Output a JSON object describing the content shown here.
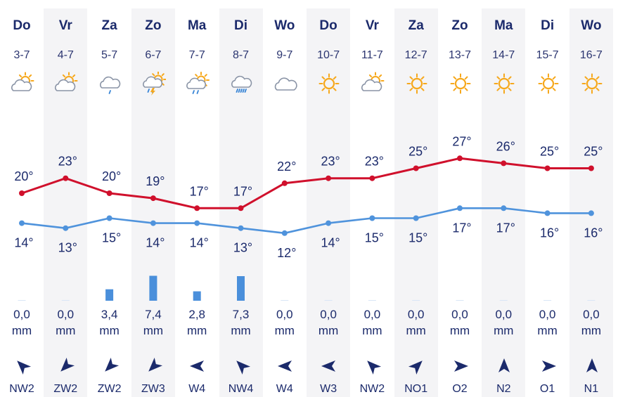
{
  "colors": {
    "max_line": "#d0102c",
    "min_line": "#4f93dc",
    "bar": "#4a8fdb",
    "text": "#1b2a6b",
    "sun": "#f6a81c",
    "cloud": "#8a94a6",
    "rain": "#3a86d6",
    "arrow": "#1b2a6b"
  },
  "chart_data": {
    "type": "line",
    "series": [
      {
        "name": "",
        "values": [
          20,
          23,
          20,
          19,
          17,
          17,
          22,
          23,
          23,
          25,
          27,
          26,
          25,
          25
        ]
      },
      {
        "name": "",
        "values": [
          14,
          13,
          15,
          14,
          14,
          13,
          12,
          14,
          15,
          15,
          17,
          17,
          16,
          16
        ]
      }
    ]
  },
  "days": [
    {
      "day": "Do",
      "date": "3-7",
      "icon": "partly-cloudy-icon",
      "max": "20°",
      "min": "14°",
      "precip": "0,0",
      "precip_value": 0.0,
      "unit": "mm",
      "wind": "NW2",
      "wind_dir": 135
    },
    {
      "day": "Vr",
      "date": "4-7",
      "icon": "partly-cloudy-icon",
      "max": "23°",
      "min": "13°",
      "precip": "0,0",
      "precip_value": 0.0,
      "unit": "mm",
      "wind": "ZW2",
      "wind_dir": 45
    },
    {
      "day": "Za",
      "date": "5-7",
      "icon": "light-rain-icon",
      "max": "20°",
      "min": "15°",
      "precip": "3,4",
      "precip_value": 3.4,
      "unit": "mm",
      "wind": "ZW2",
      "wind_dir": 45
    },
    {
      "day": "Zo",
      "date": "6-7",
      "icon": "thunderstorm-icon",
      "max": "19°",
      "min": "14°",
      "precip": "7,4",
      "precip_value": 7.4,
      "unit": "mm",
      "wind": "ZW3",
      "wind_dir": 45
    },
    {
      "day": "Ma",
      "date": "7-7",
      "icon": "partly-cloudy-rain-icon",
      "max": "17°",
      "min": "14°",
      "precip": "2,8",
      "precip_value": 2.8,
      "unit": "mm",
      "wind": "W4",
      "wind_dir": 90
    },
    {
      "day": "Di",
      "date": "8-7",
      "icon": "rain-icon",
      "max": "17°",
      "min": "13°",
      "precip": "7,3",
      "precip_value": 7.3,
      "unit": "mm",
      "wind": "NW4",
      "wind_dir": 135
    },
    {
      "day": "Wo",
      "date": "9-7",
      "icon": "cloudy-icon",
      "max": "22°",
      "min": "12°",
      "precip": "0,0",
      "precip_value": 0.0,
      "unit": "mm",
      "wind": "W4",
      "wind_dir": 90
    },
    {
      "day": "Do",
      "date": "10-7",
      "icon": "sun-icon",
      "max": "23°",
      "min": "14°",
      "precip": "0,0",
      "precip_value": 0.0,
      "unit": "mm",
      "wind": "W3",
      "wind_dir": 90
    },
    {
      "day": "Vr",
      "date": "11-7",
      "icon": "partly-cloudy-icon",
      "max": "23°",
      "min": "15°",
      "precip": "0,0",
      "precip_value": 0.0,
      "unit": "mm",
      "wind": "NW2",
      "wind_dir": 135
    },
    {
      "day": "Za",
      "date": "12-7",
      "icon": "sun-icon",
      "max": "25°",
      "min": "15°",
      "precip": "0,0",
      "precip_value": 0.0,
      "unit": "mm",
      "wind": "NO1",
      "wind_dir": 225
    },
    {
      "day": "Zo",
      "date": "13-7",
      "icon": "sun-icon",
      "max": "27°",
      "min": "17°",
      "precip": "0,0",
      "precip_value": 0.0,
      "unit": "mm",
      "wind": "O2",
      "wind_dir": 270
    },
    {
      "day": "Ma",
      "date": "14-7",
      "icon": "sun-icon",
      "max": "26°",
      "min": "17°",
      "precip": "0,0",
      "precip_value": 0.0,
      "unit": "mm",
      "wind": "N2",
      "wind_dir": 180
    },
    {
      "day": "Di",
      "date": "15-7",
      "icon": "sun-icon",
      "max": "25°",
      "min": "16°",
      "precip": "0,0",
      "precip_value": 0.0,
      "unit": "mm",
      "wind": "O1",
      "wind_dir": 270
    },
    {
      "day": "Wo",
      "date": "16-7",
      "icon": "sun-icon",
      "max": "25°",
      "min": "16°",
      "precip": "0,0",
      "precip_value": 0.0,
      "unit": "mm",
      "wind": "N1",
      "wind_dir": 180
    }
  ]
}
